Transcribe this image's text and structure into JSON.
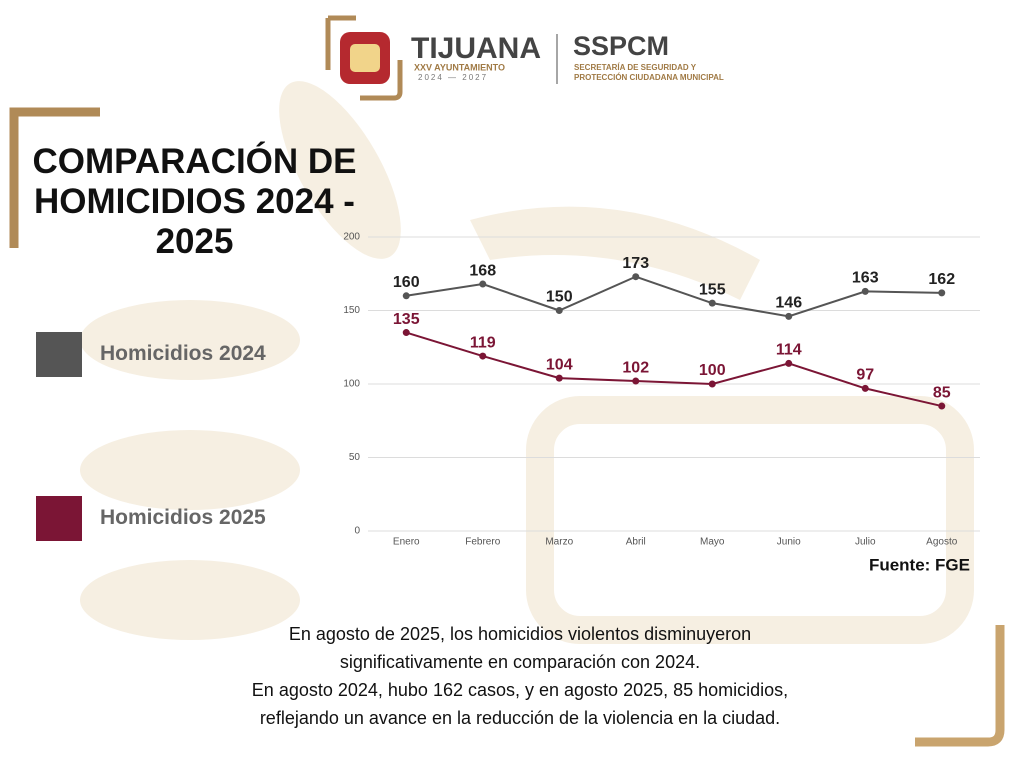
{
  "header": {
    "city": "TIJUANA",
    "council": "XXV AYUNTAMIENTO",
    "term": "2024 — 2027",
    "agency": "SSPCM",
    "agency_line1": "SECRETARÍA DE SEGURIDAD Y",
    "agency_line2": "PROTECCIÓN CIUDADANA MUNICIPAL"
  },
  "chart_data": {
    "type": "line",
    "title": "COMPARACIÓN DE HOMICIDIOS 2024 - 2025",
    "categories": [
      "Enero",
      "Febrero",
      "Marzo",
      "Abril",
      "Mayo",
      "Junio",
      "Julio",
      "Agosto"
    ],
    "series": [
      {
        "name": "Homicidios 2024",
        "color": "#555555",
        "values": [
          160,
          168,
          150,
          173,
          155,
          146,
          163,
          162
        ]
      },
      {
        "name": "Homicidios 2025",
        "color": "#7b1535",
        "values": [
          135,
          119,
          104,
          102,
          100,
          114,
          97,
          85
        ]
      }
    ],
    "ylim": [
      0,
      200
    ],
    "yticks": [
      0,
      50,
      100,
      150,
      200
    ],
    "grid": true,
    "legend": "left",
    "source": "Fuente: FGE"
  },
  "note": [
    "En agosto de 2025, los homicidios violentos disminuyeron",
    "significativamente en comparación con 2024.",
    "En agosto 2024, hubo 162 casos, y en agosto 2025, 85 homicidios,",
    "reflejando un avance en la reducción de la violencia en la ciudad."
  ]
}
